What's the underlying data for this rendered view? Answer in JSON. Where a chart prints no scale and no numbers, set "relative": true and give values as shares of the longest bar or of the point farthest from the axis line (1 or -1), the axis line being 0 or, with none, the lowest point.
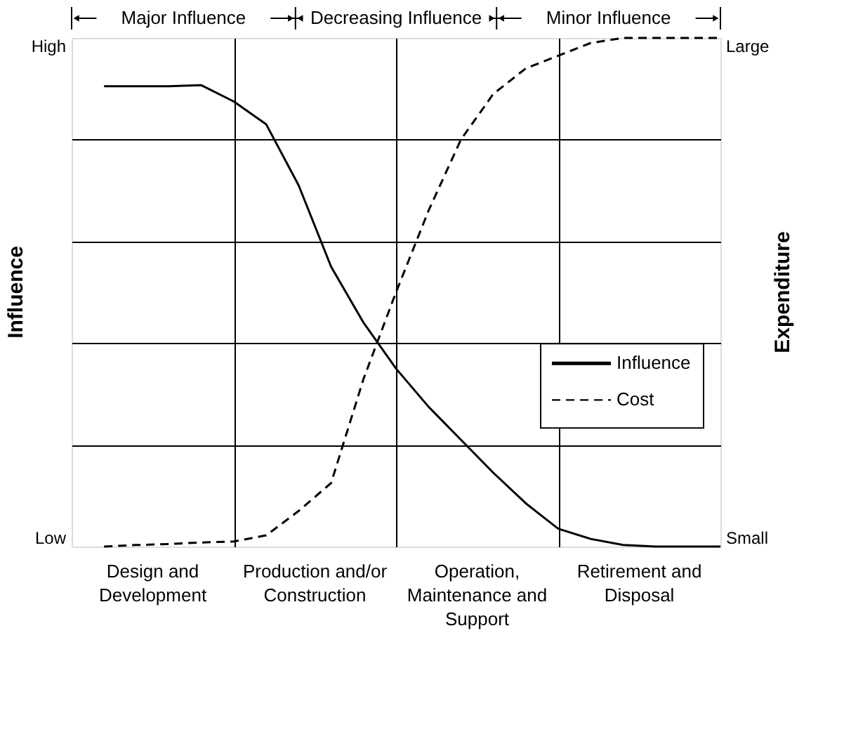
{
  "chart_data": {
    "type": "line",
    "relative": true,
    "categories": [
      null,
      null,
      null,
      null,
      null,
      null,
      null,
      null,
      null,
      null,
      null,
      null,
      null,
      null,
      null,
      null,
      null,
      null,
      null,
      null,
      null
    ],
    "ylabel": "Influence",
    "y2label": "Expenditure",
    "grid": true,
    "legend": "right",
    "annotations": [
      "Design and Development",
      "Production and/or Construction",
      "Operation, Maintenance and Support",
      "Retirement and Disposal",
      "Major Influence",
      "Decreasing Influence",
      "Minor Influence",
      "High",
      "Low",
      "Large",
      "Small"
    ],
    "series": [
      {
        "name": "Influence",
        "color": "#000000",
        "line_style": "solid",
        "values": [
          null,
          0.905,
          0.905,
          0.905,
          0.907,
          0.875,
          0.83,
          0.71,
          0.55,
          0.44,
          0.35,
          0.275,
          0.21,
          0.145,
          0.085,
          0.035,
          0.015,
          0.003,
          0.0,
          0.0,
          0.0
        ]
      },
      {
        "name": "Cost",
        "color": "#000000",
        "line_style": "dashed",
        "values": [
          null,
          0.0,
          0.003,
          0.005,
          0.008,
          0.01,
          0.022,
          0.07,
          0.125,
          0.33,
          0.5,
          0.66,
          0.8,
          0.89,
          0.94,
          0.965,
          0.99,
          1.0,
          1.0,
          1.0,
          1.0
        ]
      }
    ]
  }
}
